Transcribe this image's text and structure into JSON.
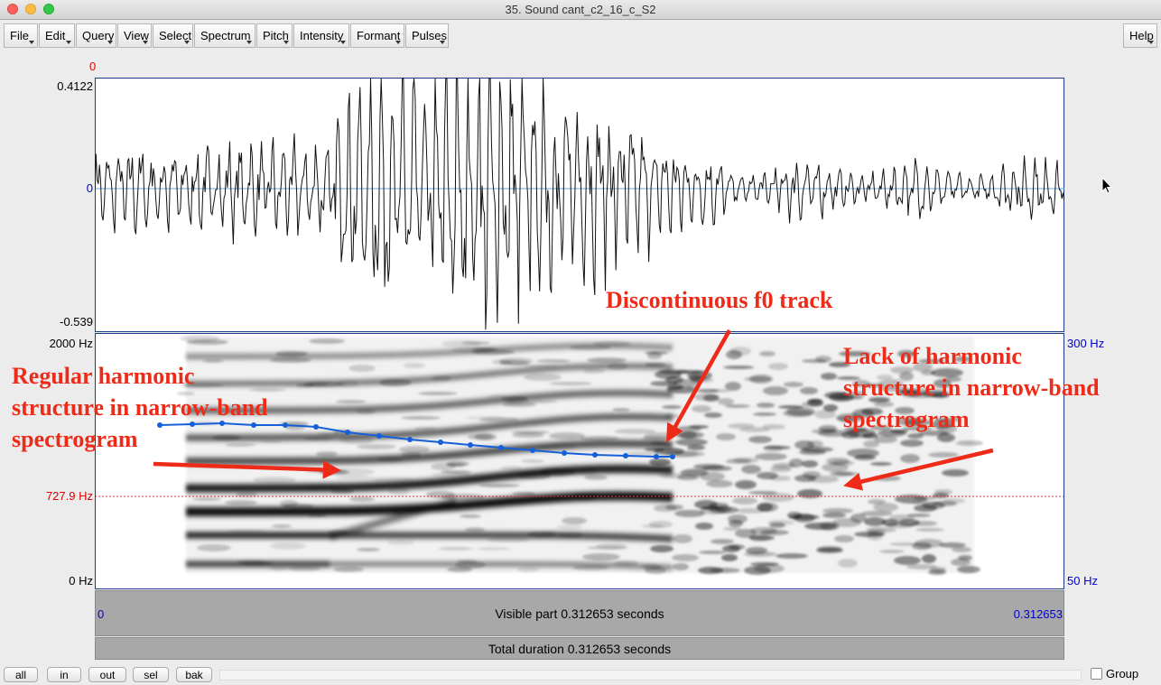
{
  "window": {
    "title": "35. Sound cant_c2_16_c_S2"
  },
  "menus": [
    {
      "label": "File"
    },
    {
      "label": "Edit"
    },
    {
      "label": "Query"
    },
    {
      "label": "View"
    },
    {
      "label": "Select"
    },
    {
      "label": "Spectrum"
    },
    {
      "label": "Pitch"
    },
    {
      "label": "Intensity"
    },
    {
      "label": "Formant"
    },
    {
      "label": "Pulses"
    }
  ],
  "help_label": "Help",
  "waveform": {
    "top_time_marker": "0",
    "ymax_label": "0.4122",
    "zero_label": "0",
    "ymin_label": "-0.539"
  },
  "spectrogram": {
    "ymax_label": "2000 Hz",
    "ymin_label": "0 Hz",
    "cursor_freq_label": "727.9 Hz",
    "pitch_max_label": "300 Hz",
    "pitch_min_label": "50 Hz"
  },
  "time_bar": {
    "start_label": "0",
    "visible_label": "Visible part 0.312653 seconds",
    "end_label": "0.312653"
  },
  "total_bar": {
    "label": "Total duration 0.312653 seconds"
  },
  "annotations": {
    "discontinuous": "Discontinuous f0 track",
    "regular": [
      "Regular harmonic",
      "structure in narrow-band",
      "spectrogram"
    ],
    "lack": [
      "Lack of harmonic",
      "structure in narrow-band",
      "spectrogram"
    ]
  },
  "bottom_buttons": [
    {
      "label": "all"
    },
    {
      "label": "in"
    },
    {
      "label": "out"
    },
    {
      "label": "sel"
    },
    {
      "label": "bak"
    }
  ],
  "group_label": "Group",
  "colors": {
    "annotation": "#ee2a18",
    "pitch_track": "#1560d8",
    "axis_blue": "#0000cc",
    "axis_red": "#dd0000"
  }
}
